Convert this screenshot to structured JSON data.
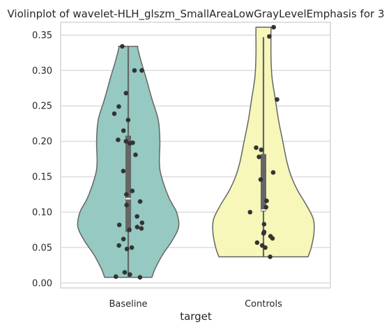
{
  "chart_data": {
    "type": "violin",
    "title": "Violinplot of wavelet-HLH_glszm_SmallAreaLowGrayLevelEmphasis for 3",
    "xlabel": "target",
    "ylabel": "",
    "categories": [
      "Baseline",
      "Controls"
    ],
    "ylim": [
      -0.007,
      0.368
    ],
    "yticks": [
      "0.00",
      "0.05",
      "0.10",
      "0.15",
      "0.20",
      "0.25",
      "0.30",
      "0.35"
    ],
    "grid": true,
    "colors": {
      "Baseline": "#95c9c1",
      "Controls": "#f6f7b8",
      "outline": "#656565",
      "box": "#666666",
      "points": "#333333",
      "grid": "#cccccc"
    },
    "violins": [
      {
        "name": "Baseline",
        "profile": [
          [
            0.008,
            0.44
          ],
          [
            0.02,
            0.5
          ],
          [
            0.04,
            0.64
          ],
          [
            0.06,
            0.82
          ],
          [
            0.08,
            0.94
          ],
          [
            0.1,
            0.9
          ],
          [
            0.12,
            0.76
          ],
          [
            0.15,
            0.62
          ],
          [
            0.17,
            0.58
          ],
          [
            0.2,
            0.59
          ],
          [
            0.23,
            0.56
          ],
          [
            0.26,
            0.44
          ],
          [
            0.29,
            0.33
          ],
          [
            0.31,
            0.25
          ],
          [
            0.33,
            0.18
          ],
          [
            0.334,
            0.18
          ]
        ],
        "box": {
          "q1": 0.072,
          "median": 0.119,
          "q3": 0.208,
          "whisker_low": 0.008,
          "whisker_high": 0.334
        },
        "points": [
          0.008,
          0.009,
          0.012,
          0.015,
          0.048,
          0.05,
          0.053,
          0.062,
          0.075,
          0.077,
          0.079,
          0.082,
          0.085,
          0.094,
          0.11,
          0.115,
          0.125,
          0.13,
          0.158,
          0.181,
          0.197,
          0.198,
          0.2,
          0.202,
          0.215,
          0.23,
          0.239,
          0.249,
          0.268,
          0.3,
          0.3,
          0.334
        ]
      },
      {
        "name": "Controls",
        "profile": [
          [
            0.037,
            0.83
          ],
          [
            0.05,
            0.89
          ],
          [
            0.07,
            0.94
          ],
          [
            0.09,
            0.93
          ],
          [
            0.11,
            0.8
          ],
          [
            0.13,
            0.64
          ],
          [
            0.15,
            0.52
          ],
          [
            0.17,
            0.44
          ],
          [
            0.2,
            0.36
          ],
          [
            0.23,
            0.28
          ],
          [
            0.26,
            0.22
          ],
          [
            0.29,
            0.16
          ],
          [
            0.32,
            0.14
          ],
          [
            0.35,
            0.14
          ],
          [
            0.361,
            0.14
          ]
        ],
        "box": {
          "q1": 0.101,
          "median": 0.103,
          "q3": 0.182,
          "whisker_low": 0.037,
          "whisker_high": 0.347
        },
        "points": [
          0.037,
          0.05,
          0.053,
          0.057,
          0.063,
          0.066,
          0.07,
          0.072,
          0.083,
          0.1,
          0.107,
          0.116,
          0.146,
          0.156,
          0.178,
          0.188,
          0.191,
          0.259,
          0.348,
          0.361
        ]
      }
    ]
  }
}
